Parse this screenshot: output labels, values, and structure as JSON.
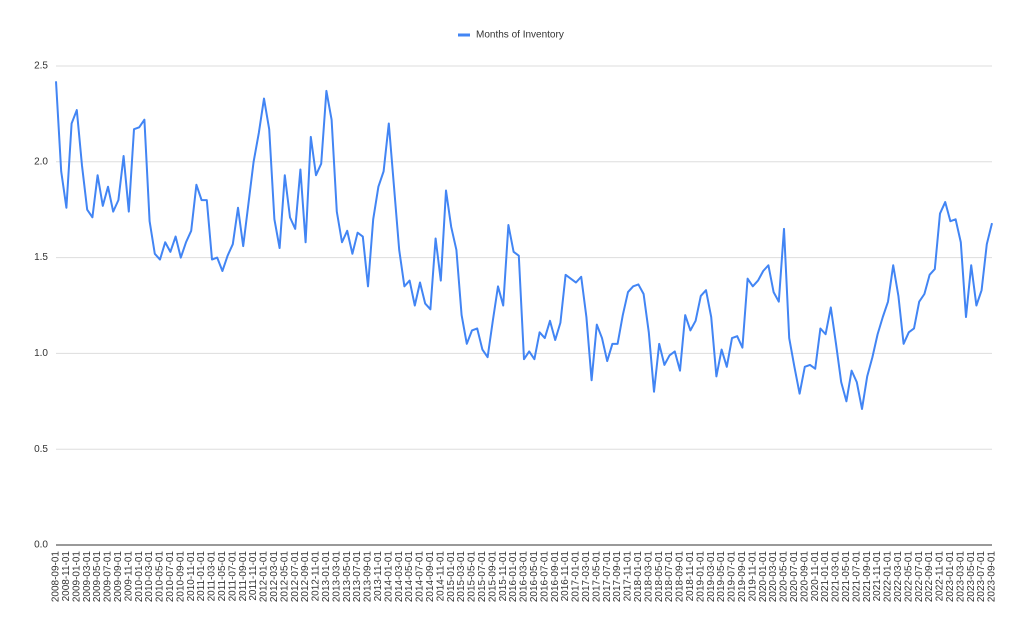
{
  "chart_data": {
    "type": "line",
    "categories": [
      "2008-09-01",
      null,
      "2008-11-01",
      null,
      "2009-01-01",
      null,
      "2009-03-01",
      null,
      "2009-05-01",
      null,
      "2009-07-01",
      null,
      "2009-09-01",
      null,
      "2009-11-01",
      null,
      "2010-01-01",
      null,
      "2010-03-01",
      null,
      "2010-05-01",
      null,
      "2010-07-01",
      null,
      "2010-09-01",
      null,
      "2010-11-01",
      null,
      "2011-01-01",
      null,
      "2011-03-01",
      null,
      "2011-05-01",
      null,
      "2011-07-01",
      null,
      "2011-09-01",
      null,
      "2011-11-01",
      null,
      "2012-01-01",
      null,
      "2012-03-01",
      null,
      "2012-05-01",
      null,
      "2012-07-01",
      null,
      "2012-09-01",
      null,
      "2012-11-01",
      null,
      "2013-01-01",
      null,
      "2013-03-01",
      null,
      "2013-05-01",
      null,
      "2013-07-01",
      null,
      "2013-09-01",
      null,
      "2013-11-01",
      null,
      "2014-01-01",
      null,
      "2014-03-01",
      null,
      "2014-05-01",
      null,
      "2014-07-01",
      null,
      "2014-09-01",
      null,
      "2014-11-01",
      null,
      "2015-01-01",
      null,
      "2015-03-01",
      null,
      "2015-05-01",
      null,
      "2015-07-01",
      null,
      "2015-09-01",
      null,
      "2015-11-01",
      null,
      "2016-01-01",
      null,
      "2016-03-01",
      null,
      "2016-05-01",
      null,
      "2016-07-01",
      null,
      "2016-09-01",
      null,
      "2016-11-01",
      null,
      "2017-01-01",
      null,
      "2017-03-01",
      null,
      "2017-05-01",
      null,
      "2017-07-01",
      null,
      "2017-09-01",
      null,
      "2017-11-01",
      null,
      "2018-01-01",
      null,
      "2018-03-01",
      null,
      "2018-05-01",
      null,
      "2018-07-01",
      null,
      "2018-09-01",
      null,
      "2018-11-01",
      null,
      "2019-01-01",
      null,
      "2019-03-01",
      null,
      "2019-05-01",
      null,
      "2019-07-01",
      null,
      "2019-09-01",
      null,
      "2019-11-01",
      null,
      "2020-01-01",
      null,
      "2020-03-01",
      null,
      "2020-05-01",
      null,
      "2020-07-01",
      null,
      "2020-09-01",
      null,
      "2020-11-01",
      null,
      "2021-01-01",
      null,
      "2021-03-01",
      null,
      "2021-05-01",
      null,
      "2021-07-01",
      null,
      "2021-09-01",
      null,
      "2021-11-01",
      null,
      "2022-01-01",
      null,
      "2022-03-01",
      null,
      "2022-05-01",
      null,
      "2022-07-01",
      null,
      "2022-09-01",
      null,
      "2022-11-01",
      null,
      "2023-01-01",
      null,
      "2023-03-01",
      null,
      "2023-05-01",
      null,
      "2023-07-01",
      null,
      "2023-09-01"
    ],
    "series": [
      {
        "name": "Months of Inventory",
        "color": "#4285f4",
        "values": [
          2.42,
          1.95,
          1.76,
          2.2,
          2.27,
          1.98,
          1.75,
          1.71,
          1.93,
          1.77,
          1.87,
          1.74,
          1.8,
          2.03,
          1.74,
          2.17,
          2.18,
          2.22,
          1.69,
          1.52,
          1.49,
          1.58,
          1.53,
          1.61,
          1.5,
          1.58,
          1.64,
          1.88,
          1.8,
          1.8,
          1.49,
          1.5,
          1.43,
          1.51,
          1.57,
          1.76,
          1.56,
          1.78,
          2.0,
          2.15,
          2.33,
          2.17,
          1.7,
          1.55,
          1.93,
          1.71,
          1.65,
          1.96,
          1.58,
          2.13,
          1.93,
          1.99,
          2.37,
          2.22,
          1.74,
          1.58,
          1.64,
          1.52,
          1.63,
          1.61,
          1.35,
          1.7,
          1.87,
          1.95,
          2.2,
          1.87,
          1.54,
          1.35,
          1.38,
          1.25,
          1.37,
          1.26,
          1.23,
          1.6,
          1.38,
          1.85,
          1.66,
          1.54,
          1.2,
          1.05,
          1.12,
          1.13,
          1.02,
          0.98,
          1.17,
          1.35,
          1.25,
          1.67,
          1.53,
          1.51,
          0.97,
          1.01,
          0.97,
          1.11,
          1.08,
          1.17,
          1.07,
          1.16,
          1.41,
          1.39,
          1.37,
          1.4,
          1.19,
          0.86,
          1.15,
          1.08,
          0.96,
          1.05,
          1.05,
          1.2,
          1.32,
          1.35,
          1.36,
          1.31,
          1.11,
          0.8,
          1.05,
          0.94,
          0.99,
          1.01,
          0.91,
          1.2,
          1.12,
          1.17,
          1.3,
          1.33,
          1.19,
          0.88,
          1.02,
          0.93,
          1.08,
          1.09,
          1.03,
          1.39,
          1.35,
          1.38,
          1.43,
          1.46,
          1.32,
          1.27,
          1.65,
          1.08,
          0.93,
          0.79,
          0.93,
          0.94,
          0.92,
          1.13,
          1.1,
          1.24,
          1.05,
          0.85,
          0.75,
          0.91,
          0.85,
          0.71,
          0.88,
          0.98,
          1.1,
          1.19,
          1.27,
          1.46,
          1.3,
          1.05,
          1.11,
          1.13,
          1.27,
          1.31,
          1.41,
          1.44,
          1.73,
          1.79,
          1.69,
          1.7,
          1.58,
          1.19,
          1.46,
          1.25,
          1.33,
          1.57,
          1.68
        ]
      }
    ],
    "ylim": [
      0,
      2.5
    ],
    "yticks": [
      {
        "value": 0,
        "label": "0.0"
      },
      0.5,
      {
        "value": 1,
        "label": "1.0"
      },
      1.5,
      {
        "value": 2,
        "label": "2.0"
      },
      2.5
    ],
    "grid": true,
    "legend": "top"
  }
}
